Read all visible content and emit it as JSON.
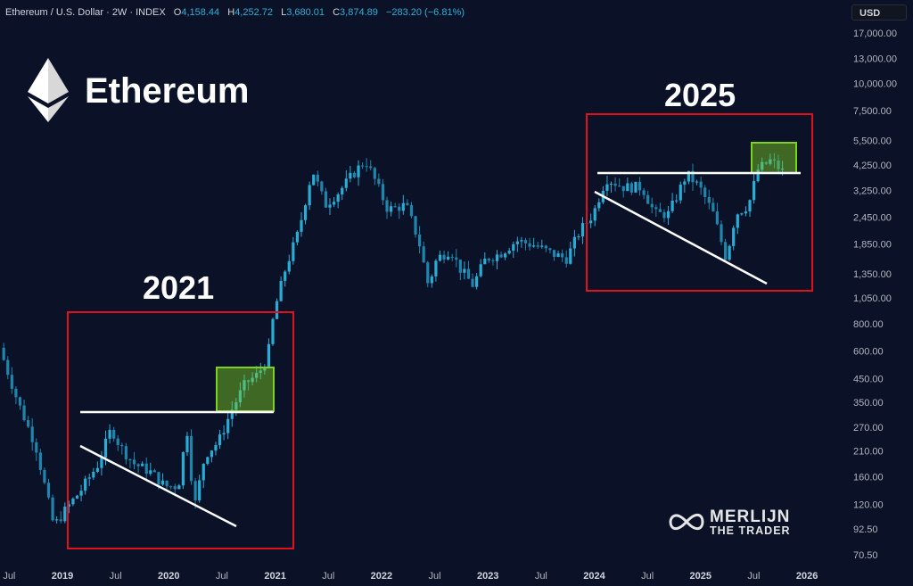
{
  "header": {
    "symbol": "Ethereum / U.S. Dollar · 2W · INDEX",
    "open_label": "O",
    "open": "4,158.44",
    "high_label": "H",
    "high": "4,252.72",
    "low_label": "L",
    "low": "3,680.01",
    "close_label": "C",
    "close": "3,874.89",
    "change": "−283.20 (−6.81%)"
  },
  "currency": "USD",
  "brand": {
    "name": "Ethereum"
  },
  "annotations": {
    "label_2021": "2021",
    "label_2025": "2025"
  },
  "watermark": {
    "line1": "MERLIJN",
    "line2": "THE TRADER"
  },
  "colors": {
    "candle": "#29acd6",
    "candle_down": "#1e86ad",
    "box_red": "#e0101e",
    "box_green": "#7ed321"
  },
  "chart_data": {
    "type": "candlestick",
    "title": "Ethereum / U.S. Dollar · 2W · INDEX",
    "yscale": "log",
    "ylim": [
      62,
      20000
    ],
    "y_ticks": [
      "17,000.00",
      "13,000.00",
      "10,000.00",
      "7,500.00",
      "5,500.00",
      "4,250.00",
      "3,250.00",
      "2,450.00",
      "1,850.00",
      "1,350.00",
      "1,050.00",
      "800.00",
      "600.00",
      "450.00",
      "350.00",
      "270.00",
      "210.00",
      "160.00",
      "120.00",
      "92.50",
      "70.50"
    ],
    "y_tick_values": [
      17000,
      13000,
      10000,
      7500,
      5500,
      4250,
      3250,
      2450,
      1850,
      1350,
      1050,
      800,
      600,
      450,
      350,
      270,
      210,
      160,
      120,
      92.5,
      70.5
    ],
    "x_ticks": [
      {
        "label": "Jul",
        "t": 2018.5
      },
      {
        "label": "2019",
        "t": 2019,
        "major": true
      },
      {
        "label": "Jul",
        "t": 2019.5
      },
      {
        "label": "2020",
        "t": 2020,
        "major": true
      },
      {
        "label": "Jul",
        "t": 2020.5
      },
      {
        "label": "2021",
        "t": 2021,
        "major": true
      },
      {
        "label": "Jul",
        "t": 2021.5
      },
      {
        "label": "2022",
        "t": 2022,
        "major": true
      },
      {
        "label": "Jul",
        "t": 2022.5
      },
      {
        "label": "2023",
        "t": 2023,
        "major": true
      },
      {
        "label": "Jul",
        "t": 2023.5
      },
      {
        "label": "2024",
        "t": 2024,
        "major": true
      },
      {
        "label": "Jul",
        "t": 2024.5
      },
      {
        "label": "2025",
        "t": 2025,
        "major": true
      },
      {
        "label": "Jul",
        "t": 2025.5
      },
      {
        "label": "2026",
        "t": 2026,
        "major": true
      }
    ],
    "price_path": [
      [
        2018.41,
        621
      ],
      [
        2018.58,
        353
      ],
      [
        2018.75,
        221
      ],
      [
        2018.92,
        95
      ],
      [
        2019.04,
        115
      ],
      [
        2019.17,
        138
      ],
      [
        2019.34,
        184
      ],
      [
        2019.46,
        267
      ],
      [
        2019.54,
        221
      ],
      [
        2019.67,
        184
      ],
      [
        2019.84,
        167
      ],
      [
        2019.96,
        145
      ],
      [
        2020.09,
        145
      ],
      [
        2020.17,
        267
      ],
      [
        2020.24,
        115
      ],
      [
        2020.34,
        201
      ],
      [
        2020.47,
        232
      ],
      [
        2020.59,
        322
      ],
      [
        2020.72,
        427
      ],
      [
        2020.84,
        469
      ],
      [
        2020.93,
        565
      ],
      [
        2020.99,
        903
      ],
      [
        2021.1,
        1443
      ],
      [
        2021.22,
        2100
      ],
      [
        2021.35,
        4050
      ],
      [
        2021.47,
        2780
      ],
      [
        2021.6,
        3200
      ],
      [
        2021.77,
        4050
      ],
      [
        2021.85,
        4450
      ],
      [
        2021.93,
        3690
      ],
      [
        2022.06,
        2650
      ],
      [
        2022.23,
        2780
      ],
      [
        2022.35,
        1914
      ],
      [
        2022.44,
        1197
      ],
      [
        2022.52,
        1585
      ],
      [
        2022.65,
        1741
      ],
      [
        2022.73,
        1443
      ],
      [
        2022.86,
        1197
      ],
      [
        2022.98,
        1585
      ],
      [
        2023.11,
        1663
      ],
      [
        2023.27,
        1914
      ],
      [
        2023.44,
        1824
      ],
      [
        2023.61,
        1663
      ],
      [
        2023.74,
        1585
      ],
      [
        2023.86,
        2100
      ],
      [
        2023.99,
        2535
      ],
      [
        2024.11,
        3690
      ],
      [
        2024.28,
        3355
      ],
      [
        2024.45,
        3355
      ],
      [
        2024.57,
        2535
      ],
      [
        2024.7,
        2535
      ],
      [
        2024.87,
        3862
      ],
      [
        2024.99,
        3355
      ],
      [
        2025.12,
        2535
      ],
      [
        2025.24,
        1585
      ],
      [
        2025.33,
        2535
      ],
      [
        2025.45,
        2780
      ],
      [
        2025.54,
        4050
      ],
      [
        2025.66,
        4450
      ],
      [
        2025.79,
        3875
      ]
    ],
    "interval": "2W"
  }
}
